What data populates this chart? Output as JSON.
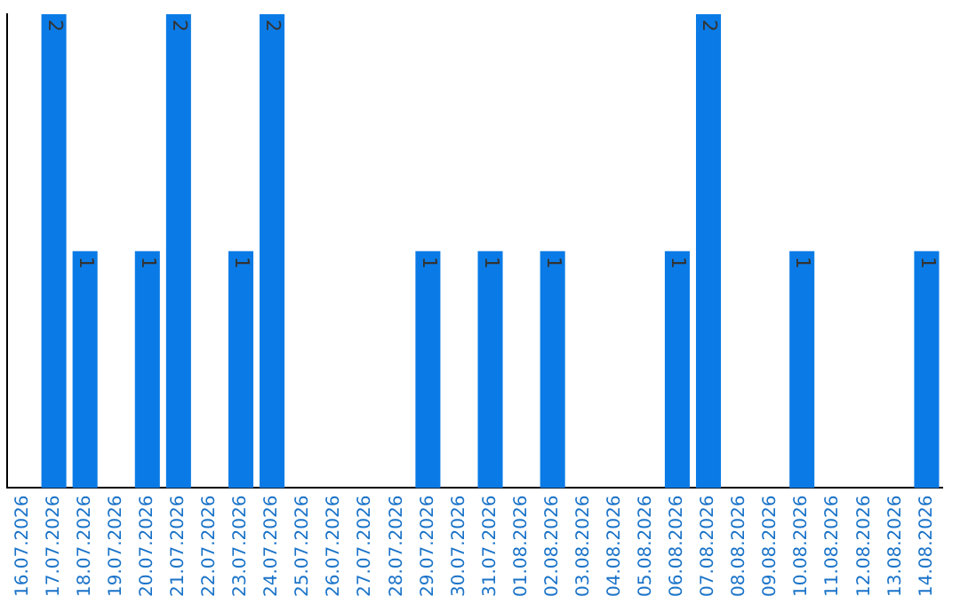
{
  "chart_data": {
    "type": "bar",
    "categories": [
      "16.07.2026",
      "17.07.2026",
      "18.07.2026",
      "19.07.2026",
      "20.07.2026",
      "21.07.2026",
      "22.07.2026",
      "23.07.2026",
      "24.07.2026",
      "25.07.2026",
      "26.07.2026",
      "27.07.2026",
      "28.07.2026",
      "29.07.2026",
      "30.07.2026",
      "31.07.2026",
      "01.08.2026",
      "02.08.2026",
      "03.08.2026",
      "04.08.2026",
      "05.08.2026",
      "06.08.2026",
      "07.08.2026",
      "08.08.2026",
      "09.08.2026",
      "10.08.2026",
      "11.08.2026",
      "12.08.2026",
      "13.08.2026",
      "14.08.2026"
    ],
    "values": [
      0,
      2,
      1,
      0,
      1,
      2,
      0,
      1,
      2,
      0,
      0,
      0,
      0,
      1,
      0,
      1,
      0,
      1,
      0,
      0,
      0,
      1,
      2,
      0,
      0,
      1,
      0,
      0,
      0,
      1
    ],
    "value_labels": [
      null,
      "2",
      "1",
      null,
      "1",
      "2",
      null,
      "1",
      "2",
      null,
      null,
      null,
      null,
      "1",
      null,
      "1",
      null,
      "1",
      null,
      null,
      null,
      "1",
      "2",
      null,
      null,
      "1",
      null,
      null,
      null,
      "1"
    ],
    "color": "#0a7be6",
    "tick_labels": "x",
    "grid": false,
    "legend": false
  }
}
